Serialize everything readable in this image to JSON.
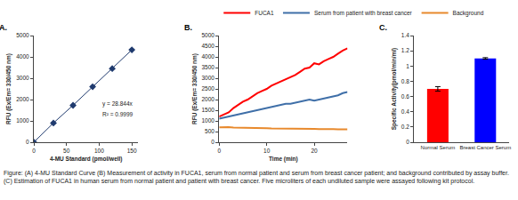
{
  "chart_data": [
    {
      "type": "scatter",
      "label": "A.",
      "x_label": "4-MU Standard (pmol/well)",
      "y_label": "RFU (Ex/Em= 330/450 nm)",
      "x": [
        0,
        30,
        60,
        90,
        120,
        150
      ],
      "series": [
        {
          "name": "4-MU Standard",
          "color": "#1f3a6e",
          "marker": "diamond",
          "line_style": "solid",
          "values": [
            0,
            900,
            1730,
            2600,
            3450,
            4330
          ]
        }
      ],
      "annotations": [
        "y = 28.844x",
        "R² = 0.9999"
      ],
      "xlim": [
        0,
        160
      ],
      "xticks": [
        0,
        50,
        100,
        150
      ],
      "ylim": [
        0,
        5000
      ],
      "yticks": [
        0,
        1000,
        2000,
        3000,
        4000,
        5000
      ],
      "grid": false
    },
    {
      "type": "line",
      "label": "B.",
      "x_label": "Time (min)",
      "y_label": "RFU (Ex/Em= 330/450 nm)",
      "x": [
        0,
        1,
        2,
        3,
        4,
        5,
        6,
        7,
        8,
        9,
        10,
        11,
        12,
        13,
        14,
        15,
        16,
        17,
        18,
        19,
        20,
        21,
        22,
        23,
        24,
        25,
        26,
        27
      ],
      "series": [
        {
          "name": "FUCA1",
          "color": "#ff0000",
          "line_style": "solid",
          "values": [
            1200,
            1300,
            1400,
            1600,
            1750,
            1900,
            2000,
            2150,
            2300,
            2400,
            2500,
            2650,
            2750,
            2850,
            2950,
            3050,
            3150,
            3300,
            3450,
            3500,
            3700,
            3650,
            3800,
            3900,
            4000,
            4150,
            4300,
            4400
          ]
        },
        {
          "name": "Serum from patient with breast cancer",
          "color": "#3f6fa8",
          "line_style": "solid",
          "values": [
            1100,
            1150,
            1200,
            1250,
            1300,
            1350,
            1400,
            1450,
            1500,
            1550,
            1600,
            1650,
            1700,
            1750,
            1800,
            1800,
            1850,
            1900,
            1950,
            2000,
            1950,
            2000,
            2050,
            2100,
            2150,
            2200,
            2300,
            2350
          ]
        },
        {
          "name": "Background",
          "color": "#e8892c",
          "line_style": "solid",
          "values": [
            700,
            720,
            710,
            690,
            690,
            680,
            670,
            680,
            670,
            660,
            660,
            650,
            650,
            640,
            640,
            650,
            640,
            630,
            620,
            630,
            620,
            610,
            620,
            600,
            610,
            600,
            590,
            600
          ]
        }
      ],
      "xlim": [
        0,
        27
      ],
      "xticks": [
        0,
        10,
        20
      ],
      "ylim": [
        0,
        5000
      ],
      "yticks": [
        0,
        500,
        1000,
        1500,
        2000,
        2500,
        3000,
        3500,
        4000,
        4500,
        5000
      ],
      "grid": false,
      "legend": "top"
    },
    {
      "type": "bar",
      "label": "C.",
      "y_label": "Specific Activity(pmol/min/ml)",
      "categories": [
        "Normal Serum",
        "Breast Cancer Serum"
      ],
      "values": [
        0.7,
        1.1
      ],
      "errors": [
        0.03,
        0.01
      ],
      "colors": [
        "#ff0000",
        "#0000ff"
      ],
      "ylim": [
        0,
        1.4
      ],
      "yticks": [
        0,
        0.2,
        0.4,
        0.6,
        0.8,
        1,
        1.2,
        1.4
      ],
      "grid": false
    }
  ],
  "caption": "Figure: (A) 4-MU Standard Curve (B) Measurement of activity in FUCA1, serum from normal patient and serum from breast cancer patient; and background contributed by assay buffer. (C) Estimation of FUCA1 in human serum from normal patient and patient with breast cancer. Five microliters of each undiluted sample were assayed following kit protocol."
}
